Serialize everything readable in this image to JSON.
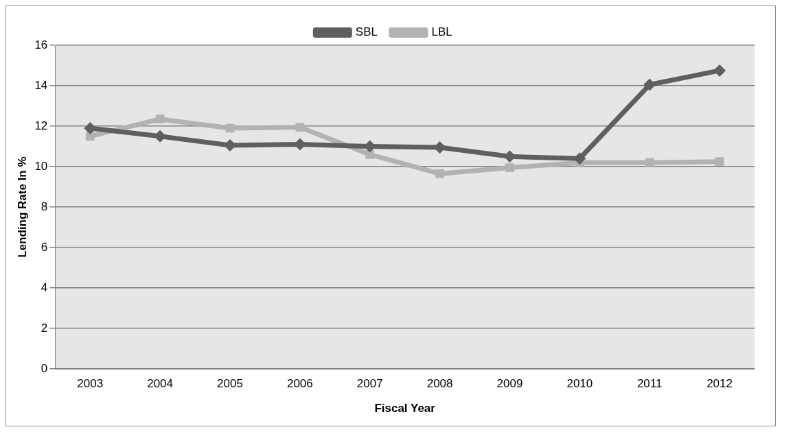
{
  "chart_data": {
    "type": "line",
    "xlabel": "Fiscal Year",
    "ylabel": "Lending Rate In %",
    "categories": [
      "2003",
      "2004",
      "2005",
      "2006",
      "2007",
      "2008",
      "2009",
      "2010",
      "2011",
      "2012"
    ],
    "series": [
      {
        "name": "SBL",
        "color": "#5f5f5f",
        "marker": "diamond",
        "values": [
          11.9,
          11.5,
          11.05,
          11.1,
          11.0,
          10.95,
          10.5,
          10.4,
          14.05,
          14.75
        ]
      },
      {
        "name": "LBL",
        "color": "#b2b2b2",
        "marker": "square",
        "values": [
          11.5,
          12.35,
          11.9,
          11.95,
          10.6,
          9.65,
          9.95,
          10.2,
          10.2,
          10.25
        ]
      }
    ],
    "ylim": [
      0,
      16
    ],
    "yticks": [
      0,
      2,
      4,
      6,
      8,
      10,
      12,
      14,
      16
    ],
    "grid": "y",
    "legend": "top"
  }
}
